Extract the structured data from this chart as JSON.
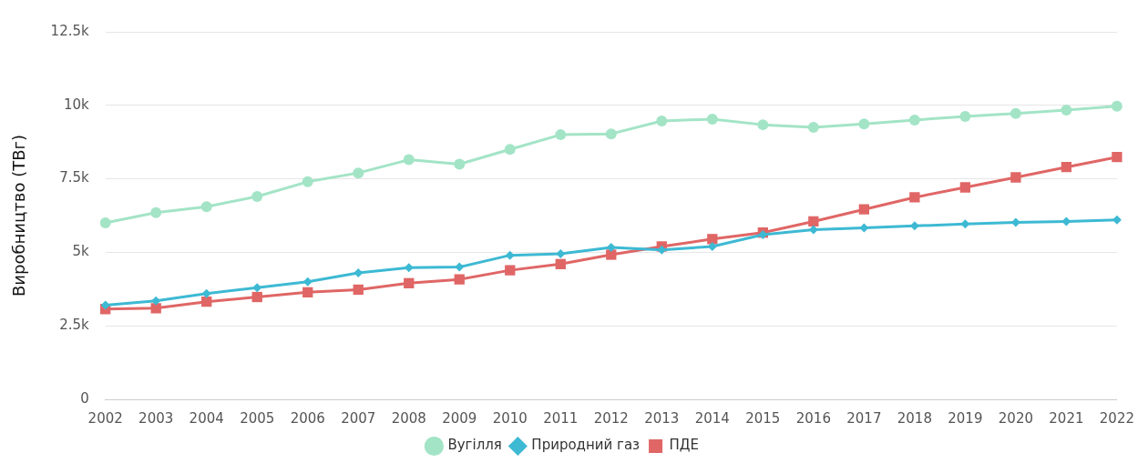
{
  "chart_data": {
    "type": "line",
    "ylabel": "Виробництво (ТВг)",
    "categories": [
      "2002",
      "2003",
      "2004",
      "2005",
      "2006",
      "2007",
      "2008",
      "2009",
      "2010",
      "2011",
      "2012",
      "2013",
      "2014",
      "2015",
      "2016",
      "2017",
      "2018",
      "2019",
      "2020",
      "2021",
      "2022"
    ],
    "ylim": [
      0,
      12500
    ],
    "yticks": [
      0,
      {
        "value": 2500,
        "label": "2.5k"
      },
      {
        "value": 5000,
        "label": "5k"
      },
      {
        "value": 7500,
        "label": "7.5k"
      },
      {
        "value": 10000,
        "label": "10k"
      },
      {
        "value": 12500,
        "label": "12.5k"
      }
    ],
    "grid": "y",
    "legend": "bottom",
    "line_style": "solid",
    "series": [
      {
        "name": "Вугілля",
        "color": "#a3e4c6",
        "marker": "circle",
        "values": [
          6000,
          6350,
          6550,
          6900,
          7400,
          7700,
          8150,
          8000,
          8500,
          9000,
          9030,
          9470,
          9530,
          9340,
          9250,
          9370,
          9500,
          9620,
          9720,
          9840,
          9970
        ]
      },
      {
        "name": "Природний газ",
        "color": "#3db9d3",
        "marker": "diamond",
        "values": [
          3200,
          3350,
          3600,
          3800,
          4000,
          4300,
          4480,
          4500,
          4900,
          4950,
          5170,
          5080,
          5200,
          5600,
          5770,
          5830,
          5900,
          5960,
          6020,
          6050,
          6100
        ]
      },
      {
        "name": "ПДЕ",
        "color": "#e06666",
        "marker": "square",
        "values": [
          3070,
          3100,
          3320,
          3480,
          3640,
          3730,
          3950,
          4080,
          4390,
          4600,
          4920,
          5200,
          5450,
          5670,
          6050,
          6460,
          6870,
          7210,
          7550,
          7900,
          8240
        ]
      }
    ]
  }
}
